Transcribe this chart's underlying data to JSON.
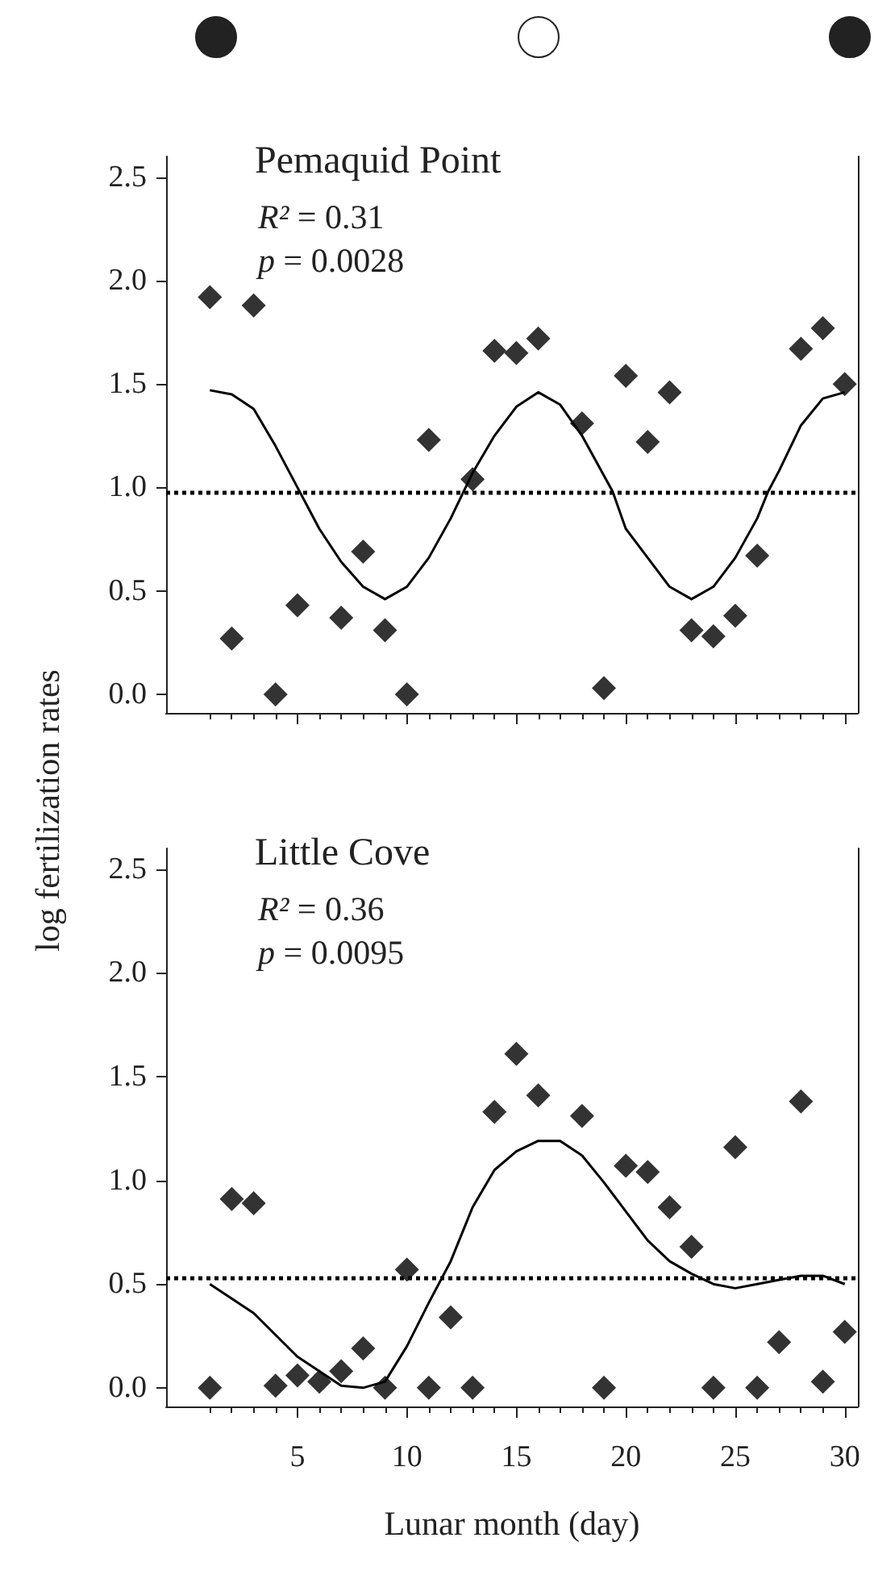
{
  "chart_data": [
    {
      "type": "scatter",
      "title": "Pemaquid Point",
      "ylabel": "log fertilization rates",
      "annotations": [
        "R² = 0.31",
        "p = 0.0028"
      ],
      "x": [
        1,
        2,
        3,
        4,
        5,
        7,
        8,
        9,
        10,
        11,
        13,
        14,
        15,
        16,
        18,
        19,
        20,
        21,
        22,
        23,
        24,
        25,
        26,
        28,
        29,
        30
      ],
      "series": [
        {
          "color": "#000000",
          "marker": "diamond",
          "values": [
            1.92,
            0.27,
            1.88,
            0.0,
            0.43,
            0.37,
            0.69,
            0.31,
            0.0,
            1.23,
            1.04,
            1.66,
            1.65,
            1.72,
            1.31,
            0.03,
            1.54,
            1.22,
            1.46,
            0.31,
            0.28,
            0.38,
            0.67,
            1.67,
            1.77,
            1.5
          ]
        },
        {
          "type": "line",
          "color": "#000000",
          "marker": "none",
          "line_style": "solid",
          "x": [
            1,
            2,
            3,
            4,
            5,
            6,
            7,
            8,
            9,
            10,
            11,
            12,
            13,
            14,
            15,
            16,
            17,
            18,
            19.4,
            20,
            21,
            22,
            23,
            24,
            25,
            26,
            26.5,
            27,
            28,
            29,
            30
          ],
          "values": [
            1.47,
            1.45,
            1.38,
            1.2,
            1.0,
            0.8,
            0.64,
            0.52,
            0.46,
            0.52,
            0.66,
            0.85,
            1.07,
            1.25,
            1.39,
            1.46,
            1.4,
            1.25,
            0.98,
            0.8,
            0.66,
            0.52,
            0.46,
            0.52,
            0.66,
            0.85,
            0.98,
            1.08,
            1.3,
            1.43,
            1.46
          ]
        }
      ],
      "ref_lines": [
        {
          "axis": "y",
          "value": 0.98,
          "line_style": "dotted",
          "color": "#000000"
        }
      ],
      "xlim": [
        -1,
        30.6
      ],
      "xticks": [
        {
          "value": 1,
          "label": null
        },
        {
          "value": 2,
          "label": null
        },
        {
          "value": 3,
          "label": null
        },
        {
          "value": 4,
          "label": null
        },
        5,
        {
          "value": 6,
          "label": null
        },
        {
          "value": 7,
          "label": null
        },
        {
          "value": 8,
          "label": null
        },
        {
          "value": 9,
          "label": null
        },
        10,
        {
          "value": 11,
          "label": null
        },
        {
          "value": 12,
          "label": null
        },
        {
          "value": 13,
          "label": null
        },
        {
          "value": 14,
          "label": null
        },
        15,
        {
          "value": 16,
          "label": null
        },
        {
          "value": 17,
          "label": null
        },
        {
          "value": 18,
          "label": null
        },
        {
          "value": 19,
          "label": null
        },
        20,
        {
          "value": 21,
          "label": null
        },
        {
          "value": 22,
          "label": null
        },
        {
          "value": 23,
          "label": null
        },
        {
          "value": 24,
          "label": null
        },
        25,
        {
          "value": 26,
          "label": null
        },
        {
          "value": 27,
          "label": null
        },
        {
          "value": 28,
          "label": null
        },
        {
          "value": 29,
          "label": null
        },
        30
      ],
      "ylim": [
        -0.09,
        2.6
      ],
      "yticks": [
        {
          "value": 0,
          "label": "0.0"
        },
        {
          "value": 0.5,
          "label": "0.5"
        },
        {
          "value": 1,
          "label": "1.0"
        },
        {
          "value": 1.5,
          "label": "1.5"
        },
        {
          "value": 2,
          "label": "2.0"
        },
        {
          "value": 2.5,
          "label": "2.5"
        }
      ],
      "tick_labels": "y",
      "grid": false
    },
    {
      "type": "scatter",
      "title": "Little Cove",
      "xlabel": "Lunar month (day)",
      "annotations": [
        "R² = 0.36",
        "p = 0.0095"
      ],
      "x": [
        1,
        2,
        3,
        4,
        5,
        6,
        7,
        8,
        9,
        10,
        11,
        12,
        13,
        14,
        15,
        16,
        18,
        19,
        20,
        21,
        22,
        23,
        24,
        25,
        26,
        27,
        28,
        29,
        30
      ],
      "series": [
        {
          "color": "#000000",
          "marker": "diamond",
          "values": [
            0,
            0.91,
            0.89,
            0.01,
            0.06,
            0.03,
            0.08,
            0.19,
            0,
            0.57,
            0,
            0.34,
            0,
            1.33,
            1.61,
            1.41,
            1.31,
            0,
            1.07,
            1.04,
            0.87,
            0.68,
            0,
            1.16,
            0,
            0.22,
            1.38,
            0.03,
            0.27
          ]
        },
        {
          "type": "line",
          "color": "#000000",
          "marker": "none",
          "line_style": "solid",
          "x": [
            1,
            3,
            5,
            7,
            8,
            9,
            10,
            11,
            12,
            13,
            14,
            15,
            16,
            17,
            18,
            19,
            20,
            21,
            22,
            23,
            24,
            25,
            26,
            27,
            28,
            29,
            30
          ],
          "values": [
            0.5,
            0.36,
            0.15,
            0.01,
            0,
            0.03,
            0.2,
            0.41,
            0.61,
            0.87,
            1.05,
            1.14,
            1.19,
            1.19,
            1.12,
            0.99,
            0.85,
            0.71,
            0.61,
            0.55,
            0.5,
            0.48,
            0.5,
            0.52,
            0.54,
            0.54,
            0.5
          ]
        }
      ],
      "ref_lines": [
        {
          "axis": "y",
          "value": 0.53,
          "line_style": "dotted",
          "color": "#000000"
        }
      ],
      "xlim": [
        -1,
        30.6
      ],
      "xticks": [
        {
          "value": 1,
          "label": null
        },
        {
          "value": 2,
          "label": null
        },
        {
          "value": 3,
          "label": null
        },
        {
          "value": 4,
          "label": null
        },
        5,
        {
          "value": 6,
          "label": null
        },
        {
          "value": 7,
          "label": null
        },
        {
          "value": 8,
          "label": null
        },
        {
          "value": 9,
          "label": null
        },
        10,
        {
          "value": 11,
          "label": null
        },
        {
          "value": 12,
          "label": null
        },
        {
          "value": 13,
          "label": null
        },
        {
          "value": 14,
          "label": null
        },
        15,
        {
          "value": 16,
          "label": null
        },
        {
          "value": 17,
          "label": null
        },
        {
          "value": 18,
          "label": null
        },
        {
          "value": 19,
          "label": null
        },
        20,
        {
          "value": 21,
          "label": null
        },
        {
          "value": 22,
          "label": null
        },
        {
          "value": 23,
          "label": null
        },
        {
          "value": 24,
          "label": null
        },
        25,
        {
          "value": 26,
          "label": null
        },
        {
          "value": 27,
          "label": null
        },
        {
          "value": 28,
          "label": null
        },
        {
          "value": 29,
          "label": null
        },
        30
      ],
      "ylim": [
        -0.09,
        2.6
      ],
      "yticks": [
        {
          "value": 0,
          "label": "0.0"
        },
        {
          "value": 0.5,
          "label": "0.5"
        },
        {
          "value": 1,
          "label": "1.0"
        },
        {
          "value": 1.5,
          "label": "1.5"
        },
        {
          "value": 2,
          "label": "2.0"
        },
        {
          "value": 2.5,
          "label": "2.5"
        }
      ],
      "grid": false
    }
  ]
}
